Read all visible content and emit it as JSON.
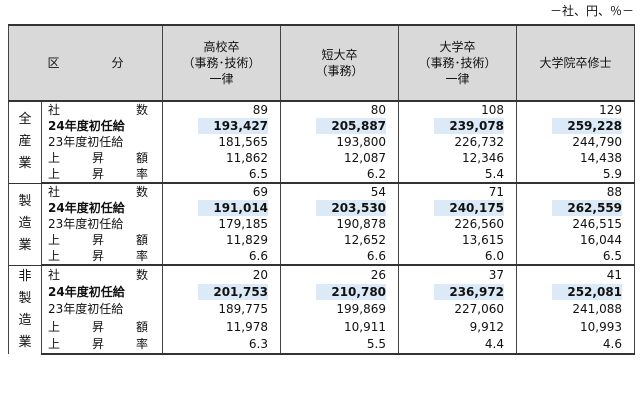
{
  "unit_note": "－社、円、％－",
  "header": {
    "area": "区　分",
    "columns": [
      [
        "高校卒",
        "（事務･技術）",
        "一律"
      ],
      [
        "短大卒",
        "（事務）"
      ],
      [
        "大学卒",
        "（事務･技術）",
        "一律"
      ],
      [
        "大学院卒修士"
      ]
    ]
  },
  "row_labels": {
    "companies": "社　　　数",
    "fy24": "24年度初任給",
    "fy23": "23年度初任給",
    "raise_amount": "上　昇　額",
    "raise_rate": "上　昇　率"
  },
  "groups": [
    {
      "category": [
        "全",
        "産",
        "業"
      ],
      "companies": [
        "89",
        "80",
        "108",
        "129"
      ],
      "fy24": [
        "193,427",
        "205,887",
        "239,078",
        "259,228"
      ],
      "fy23": [
        "181,565",
        "193,800",
        "226,732",
        "244,790"
      ],
      "raise_amount": [
        "11,862",
        "12,087",
        "12,346",
        "14,438"
      ],
      "raise_rate": [
        "6.5",
        "6.2",
        "5.4",
        "5.9"
      ]
    },
    {
      "category": [
        "製",
        "造",
        "業"
      ],
      "companies": [
        "69",
        "54",
        "71",
        "88"
      ],
      "fy24": [
        "191,014",
        "203,530",
        "240,175",
        "262,559"
      ],
      "fy23": [
        "179,185",
        "190,878",
        "226,560",
        "246,515"
      ],
      "raise_amount": [
        "11,829",
        "12,652",
        "13,615",
        "16,044"
      ],
      "raise_rate": [
        "6.6",
        "6.6",
        "6.0",
        "6.5"
      ]
    },
    {
      "category": [
        "非",
        "製",
        "造",
        "業"
      ],
      "companies": [
        "20",
        "26",
        "37",
        "41"
      ],
      "fy24": [
        "201,753",
        "210,780",
        "236,972",
        "252,081"
      ],
      "fy23": [
        "189,775",
        "199,869",
        "227,060",
        "241,088"
      ],
      "raise_amount": [
        "11,978",
        "10,911",
        "9,912",
        "10,993"
      ],
      "raise_rate": [
        "6.3",
        "5.5",
        "4.4",
        "4.6"
      ]
    }
  ],
  "colors": {
    "header_bg": "#d9d9d9",
    "highlight_bg": "#dce9f7"
  }
}
